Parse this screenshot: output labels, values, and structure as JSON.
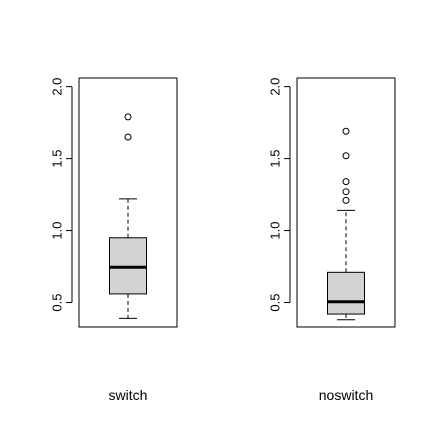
{
  "chart_data": [
    {
      "type": "box",
      "xlabel": "switch",
      "ylim": [
        0.33,
        2.06
      ],
      "yticks": [
        "0.5",
        "1.0",
        "1.5",
        "2.0"
      ],
      "box": {
        "whisker_low": 0.39,
        "q1": 0.56,
        "median": 0.745,
        "q3": 0.95,
        "whisker_high": 1.22
      },
      "outliers": [
        1.65,
        1.79
      ],
      "box_fill": "#d3d3d3"
    },
    {
      "type": "box",
      "xlabel": "noswitch",
      "ylim": [
        0.33,
        2.06
      ],
      "yticks": [
        "0.5",
        "1.0",
        "1.5",
        "2.0"
      ],
      "box": {
        "whisker_low": 0.38,
        "q1": 0.42,
        "median": 0.505,
        "q3": 0.71,
        "whisker_high": 1.14
      },
      "outliers": [
        1.21,
        1.27,
        1.34,
        1.52,
        1.69
      ],
      "box_fill": "#d3d3d3"
    }
  ]
}
